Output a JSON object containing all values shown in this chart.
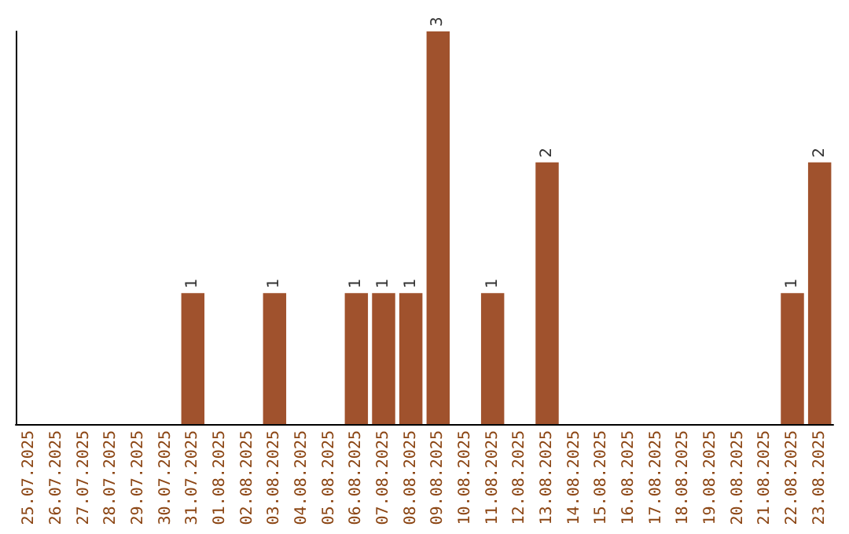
{
  "chart_data": {
    "type": "bar",
    "categories": [
      "25.07.2025",
      "26.07.2025",
      "27.07.2025",
      "28.07.2025",
      "29.07.2025",
      "30.07.2025",
      "31.07.2025",
      "01.08.2025",
      "02.08.2025",
      "03.08.2025",
      "04.08.2025",
      "05.08.2025",
      "06.08.2025",
      "07.08.2025",
      "08.08.2025",
      "09.08.2025",
      "10.08.2025",
      "11.08.2025",
      "12.08.2025",
      "13.08.2025",
      "14.08.2025",
      "15.08.2025",
      "16.08.2025",
      "17.08.2025",
      "18.08.2025",
      "19.08.2025",
      "20.08.2025",
      "21.08.2025",
      "22.08.2025",
      "23.08.2025"
    ],
    "values": [
      0,
      0,
      0,
      0,
      0,
      0,
      1,
      0,
      0,
      1,
      0,
      0,
      1,
      1,
      1,
      3,
      0,
      1,
      0,
      2,
      0,
      0,
      0,
      0,
      0,
      0,
      0,
      0,
      1,
      2
    ],
    "value_labels": [
      null,
      null,
      null,
      null,
      null,
      null,
      "1",
      null,
      null,
      "1",
      null,
      null,
      "1",
      "1",
      "1",
      "3",
      null,
      "1",
      null,
      "2",
      null,
      null,
      null,
      null,
      null,
      null,
      null,
      null,
      "1",
      "2"
    ],
    "color": "#a0522d",
    "tick_labels": "x"
  }
}
